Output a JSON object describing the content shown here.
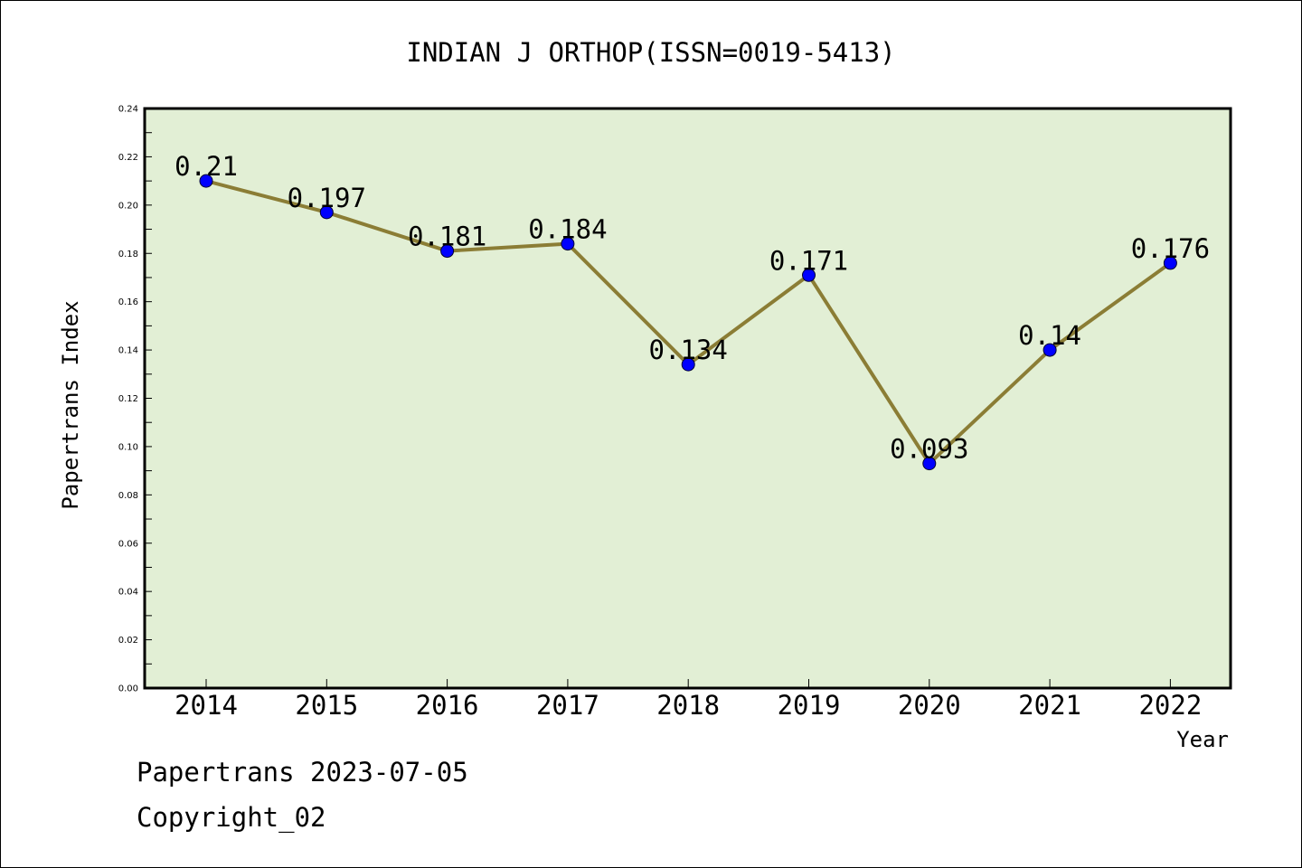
{
  "chart_data": {
    "type": "line",
    "title": "INDIAN J ORTHOP(ISSN=0019-5413)",
    "xlabel": "Year",
    "ylabel": "Papertrans Index",
    "categories": [
      "2014",
      "2015",
      "2016",
      "2017",
      "2018",
      "2019",
      "2020",
      "2021",
      "2022"
    ],
    "series": [
      {
        "values": [
          0.21,
          0.197,
          0.181,
          0.184,
          0.134,
          0.171,
          0.093,
          0.14,
          0.176
        ],
        "labels": [
          "0.21",
          "0.197",
          "0.181",
          "0.184",
          "0.134",
          "0.171",
          "0.093",
          "0.14",
          "0.176"
        ]
      }
    ],
    "ylim": [
      0,
      0.24
    ],
    "yticks": [
      "0.00",
      "0.02",
      "0.04",
      "0.06",
      "0.08",
      "0.10",
      "0.12",
      "0.14",
      "0.16",
      "0.18",
      "0.20",
      "0.22",
      "0.24"
    ],
    "grid": false,
    "legend": "none",
    "colors": {
      "plot_background": "#e2efd5",
      "line": "#8b7d35",
      "marker": "#0000ff"
    }
  },
  "footer": {
    "line1": "Papertrans 2023-07-05",
    "line2": "Copyright_02"
  }
}
